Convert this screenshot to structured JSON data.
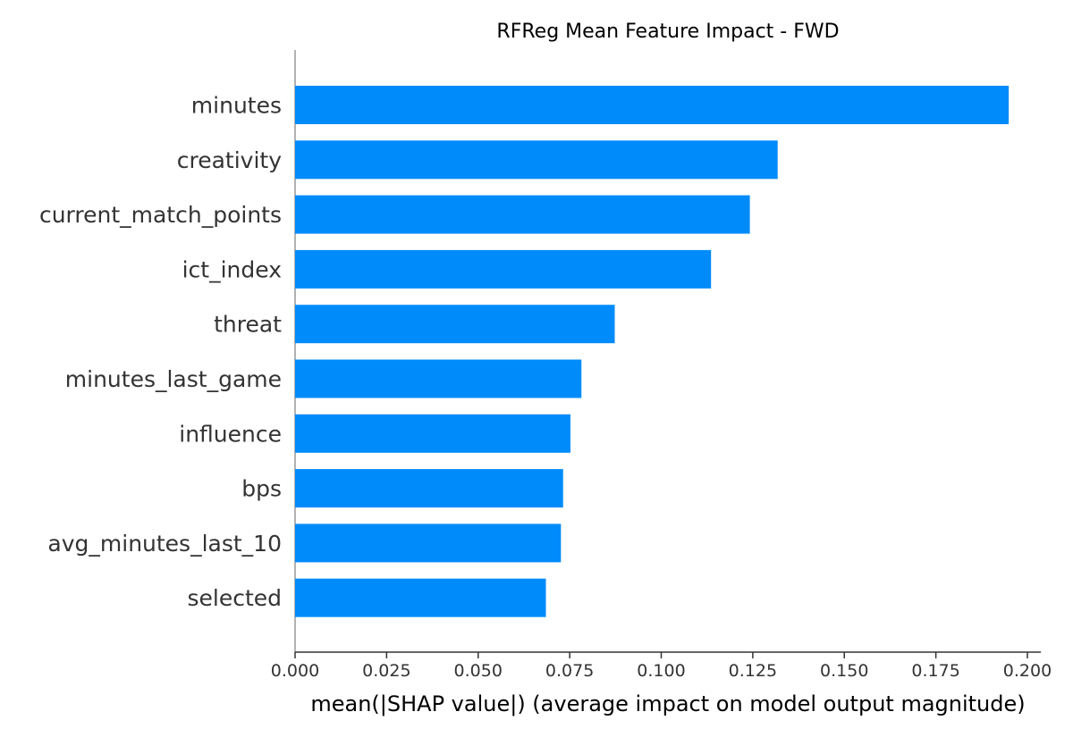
{
  "chart_data": {
    "type": "bar",
    "orientation": "horizontal",
    "title": "RFReg Mean Feature Impact - FWD",
    "xlabel": "mean(|SHAP value|) (average impact on model output magnitude)",
    "ylabel": "",
    "categories": [
      "minutes",
      "creativity",
      "current_match_points",
      "ict_index",
      "threat",
      "minutes_last_game",
      "influence",
      "bps",
      "avg_minutes_last_10",
      "selected"
    ],
    "values": [
      0.1949,
      0.1318,
      0.1242,
      0.1136,
      0.0873,
      0.0782,
      0.0752,
      0.0732,
      0.0726,
      0.0685
    ],
    "xlim": [
      0.0,
      0.2035
    ],
    "xticks": [
      0.0,
      0.025,
      0.05,
      0.075,
      0.1,
      0.125,
      0.15,
      0.175,
      0.2
    ],
    "xtick_labels": [
      "0.000",
      "0.025",
      "0.050",
      "0.075",
      "0.100",
      "0.125",
      "0.150",
      "0.175",
      "0.200"
    ],
    "bar_color": "#008bfb",
    "grid": false,
    "legend": "none"
  }
}
